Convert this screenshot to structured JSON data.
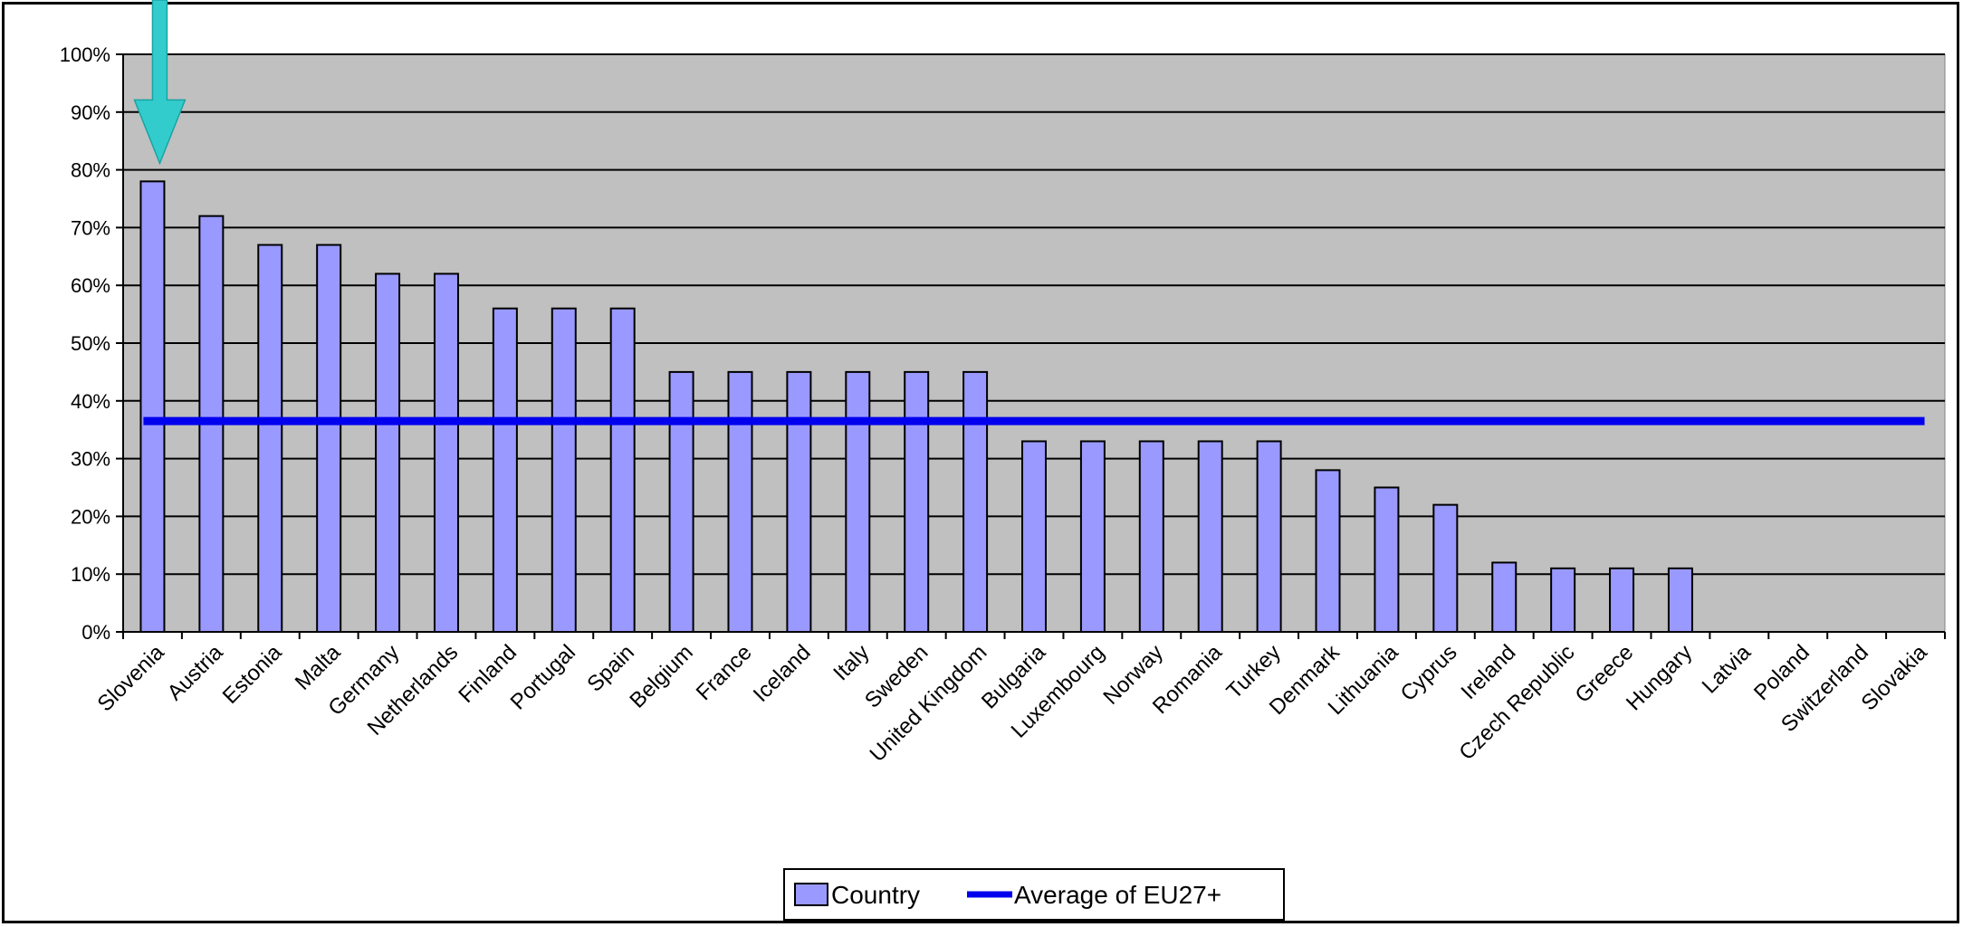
{
  "chart_data": {
    "type": "bar",
    "title": "",
    "xlabel": "",
    "ylabel": "",
    "ylim": [
      0,
      100
    ],
    "y_ticks": [
      "0%",
      "10%",
      "20%",
      "30%",
      "40%",
      "50%",
      "60%",
      "70%",
      "80%",
      "90%",
      "100%"
    ],
    "grid": true,
    "legend_position": "bottom-center",
    "categories": [
      "Slovenia",
      "Austria",
      "Estonia",
      "Malta",
      "Germany",
      "Netherlands",
      "Finland",
      "Portugal",
      "Spain",
      "Belgium",
      "France",
      "Iceland",
      "Italy",
      "Sweden",
      "United Kingdom",
      "Bulgaria",
      "Luxembourg",
      "Norway",
      "Romania",
      "Turkey",
      "Denmark",
      "Lithuania",
      "Cyprus",
      "Ireland",
      "Czech Republic",
      "Greece",
      "Hungary",
      "Latvia",
      "Poland",
      "Switzerland",
      "Slovakia"
    ],
    "series": [
      {
        "name": "Country",
        "type": "bar",
        "color": "#9999ff",
        "values": [
          78,
          72,
          67,
          67,
          62,
          62,
          56,
          56,
          56,
          45,
          45,
          45,
          45,
          45,
          45,
          33,
          33,
          33,
          33,
          33,
          28,
          25,
          22,
          12,
          11,
          11,
          11,
          0,
          0,
          0,
          0
        ]
      },
      {
        "name": "Average of EU27+",
        "type": "line",
        "color": "#0000ee",
        "value": 36.5
      }
    ],
    "annotations": [
      {
        "type": "arrow",
        "target": "Slovenia",
        "color": "#33cccc"
      }
    ],
    "plot_background": "#c0c0c0"
  }
}
